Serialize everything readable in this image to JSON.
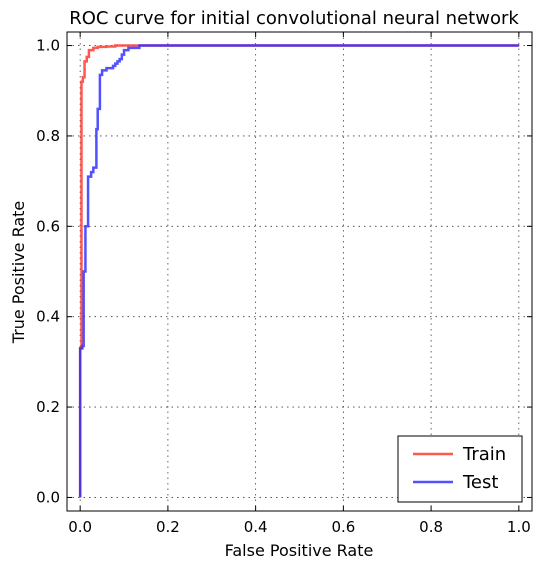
{
  "chart_data": {
    "type": "line",
    "title": "ROC curve for initial convolutional neural network",
    "xlabel": "False Positive Rate",
    "ylabel": "True Positive Rate",
    "xlim": [
      -0.03,
      1.03
    ],
    "ylim": [
      -0.03,
      1.03
    ],
    "xticks": [
      "0.0",
      "0.2",
      "0.4",
      "0.6",
      "0.8",
      "1.0"
    ],
    "yticks": [
      "0.0",
      "0.2",
      "0.4",
      "0.6",
      "0.8",
      "1.0"
    ],
    "grid": true,
    "legend_position": "bottom-right",
    "series": [
      {
        "name": "Train",
        "color": "#ff3b30",
        "x": [
          0.0,
          0.0,
          0.003,
          0.003,
          0.006,
          0.006,
          0.01,
          0.01,
          0.015,
          0.015,
          0.02,
          0.02,
          0.03,
          0.03,
          0.04,
          0.04,
          0.06,
          0.06,
          0.08,
          0.08,
          0.1,
          0.13,
          1.0
        ],
        "y": [
          0.0,
          0.33,
          0.33,
          0.92,
          0.92,
          0.93,
          0.93,
          0.965,
          0.965,
          0.975,
          0.975,
          0.99,
          0.99,
          0.995,
          0.995,
          0.997,
          0.997,
          0.998,
          0.998,
          1.0,
          1.0,
          1.0,
          1.0
        ]
      },
      {
        "name": "Test",
        "color": "#3333ff",
        "x": [
          0.0,
          0.0,
          0.005,
          0.005,
          0.008,
          0.008,
          0.012,
          0.012,
          0.018,
          0.018,
          0.025,
          0.025,
          0.03,
          0.03,
          0.037,
          0.037,
          0.04,
          0.04,
          0.045,
          0.045,
          0.05,
          0.05,
          0.06,
          0.06,
          0.075,
          0.075,
          0.08,
          0.08,
          0.085,
          0.085,
          0.09,
          0.09,
          0.095,
          0.095,
          0.1,
          0.1,
          0.11,
          0.11,
          0.135,
          0.135,
          1.0
        ],
        "y": [
          0.0,
          0.33,
          0.33,
          0.335,
          0.335,
          0.5,
          0.5,
          0.6,
          0.6,
          0.71,
          0.71,
          0.72,
          0.72,
          0.73,
          0.73,
          0.815,
          0.815,
          0.86,
          0.86,
          0.935,
          0.935,
          0.945,
          0.945,
          0.95,
          0.95,
          0.955,
          0.955,
          0.96,
          0.96,
          0.965,
          0.965,
          0.97,
          0.97,
          0.98,
          0.98,
          0.99,
          0.99,
          0.995,
          0.995,
          1.0,
          1.0
        ]
      }
    ]
  }
}
